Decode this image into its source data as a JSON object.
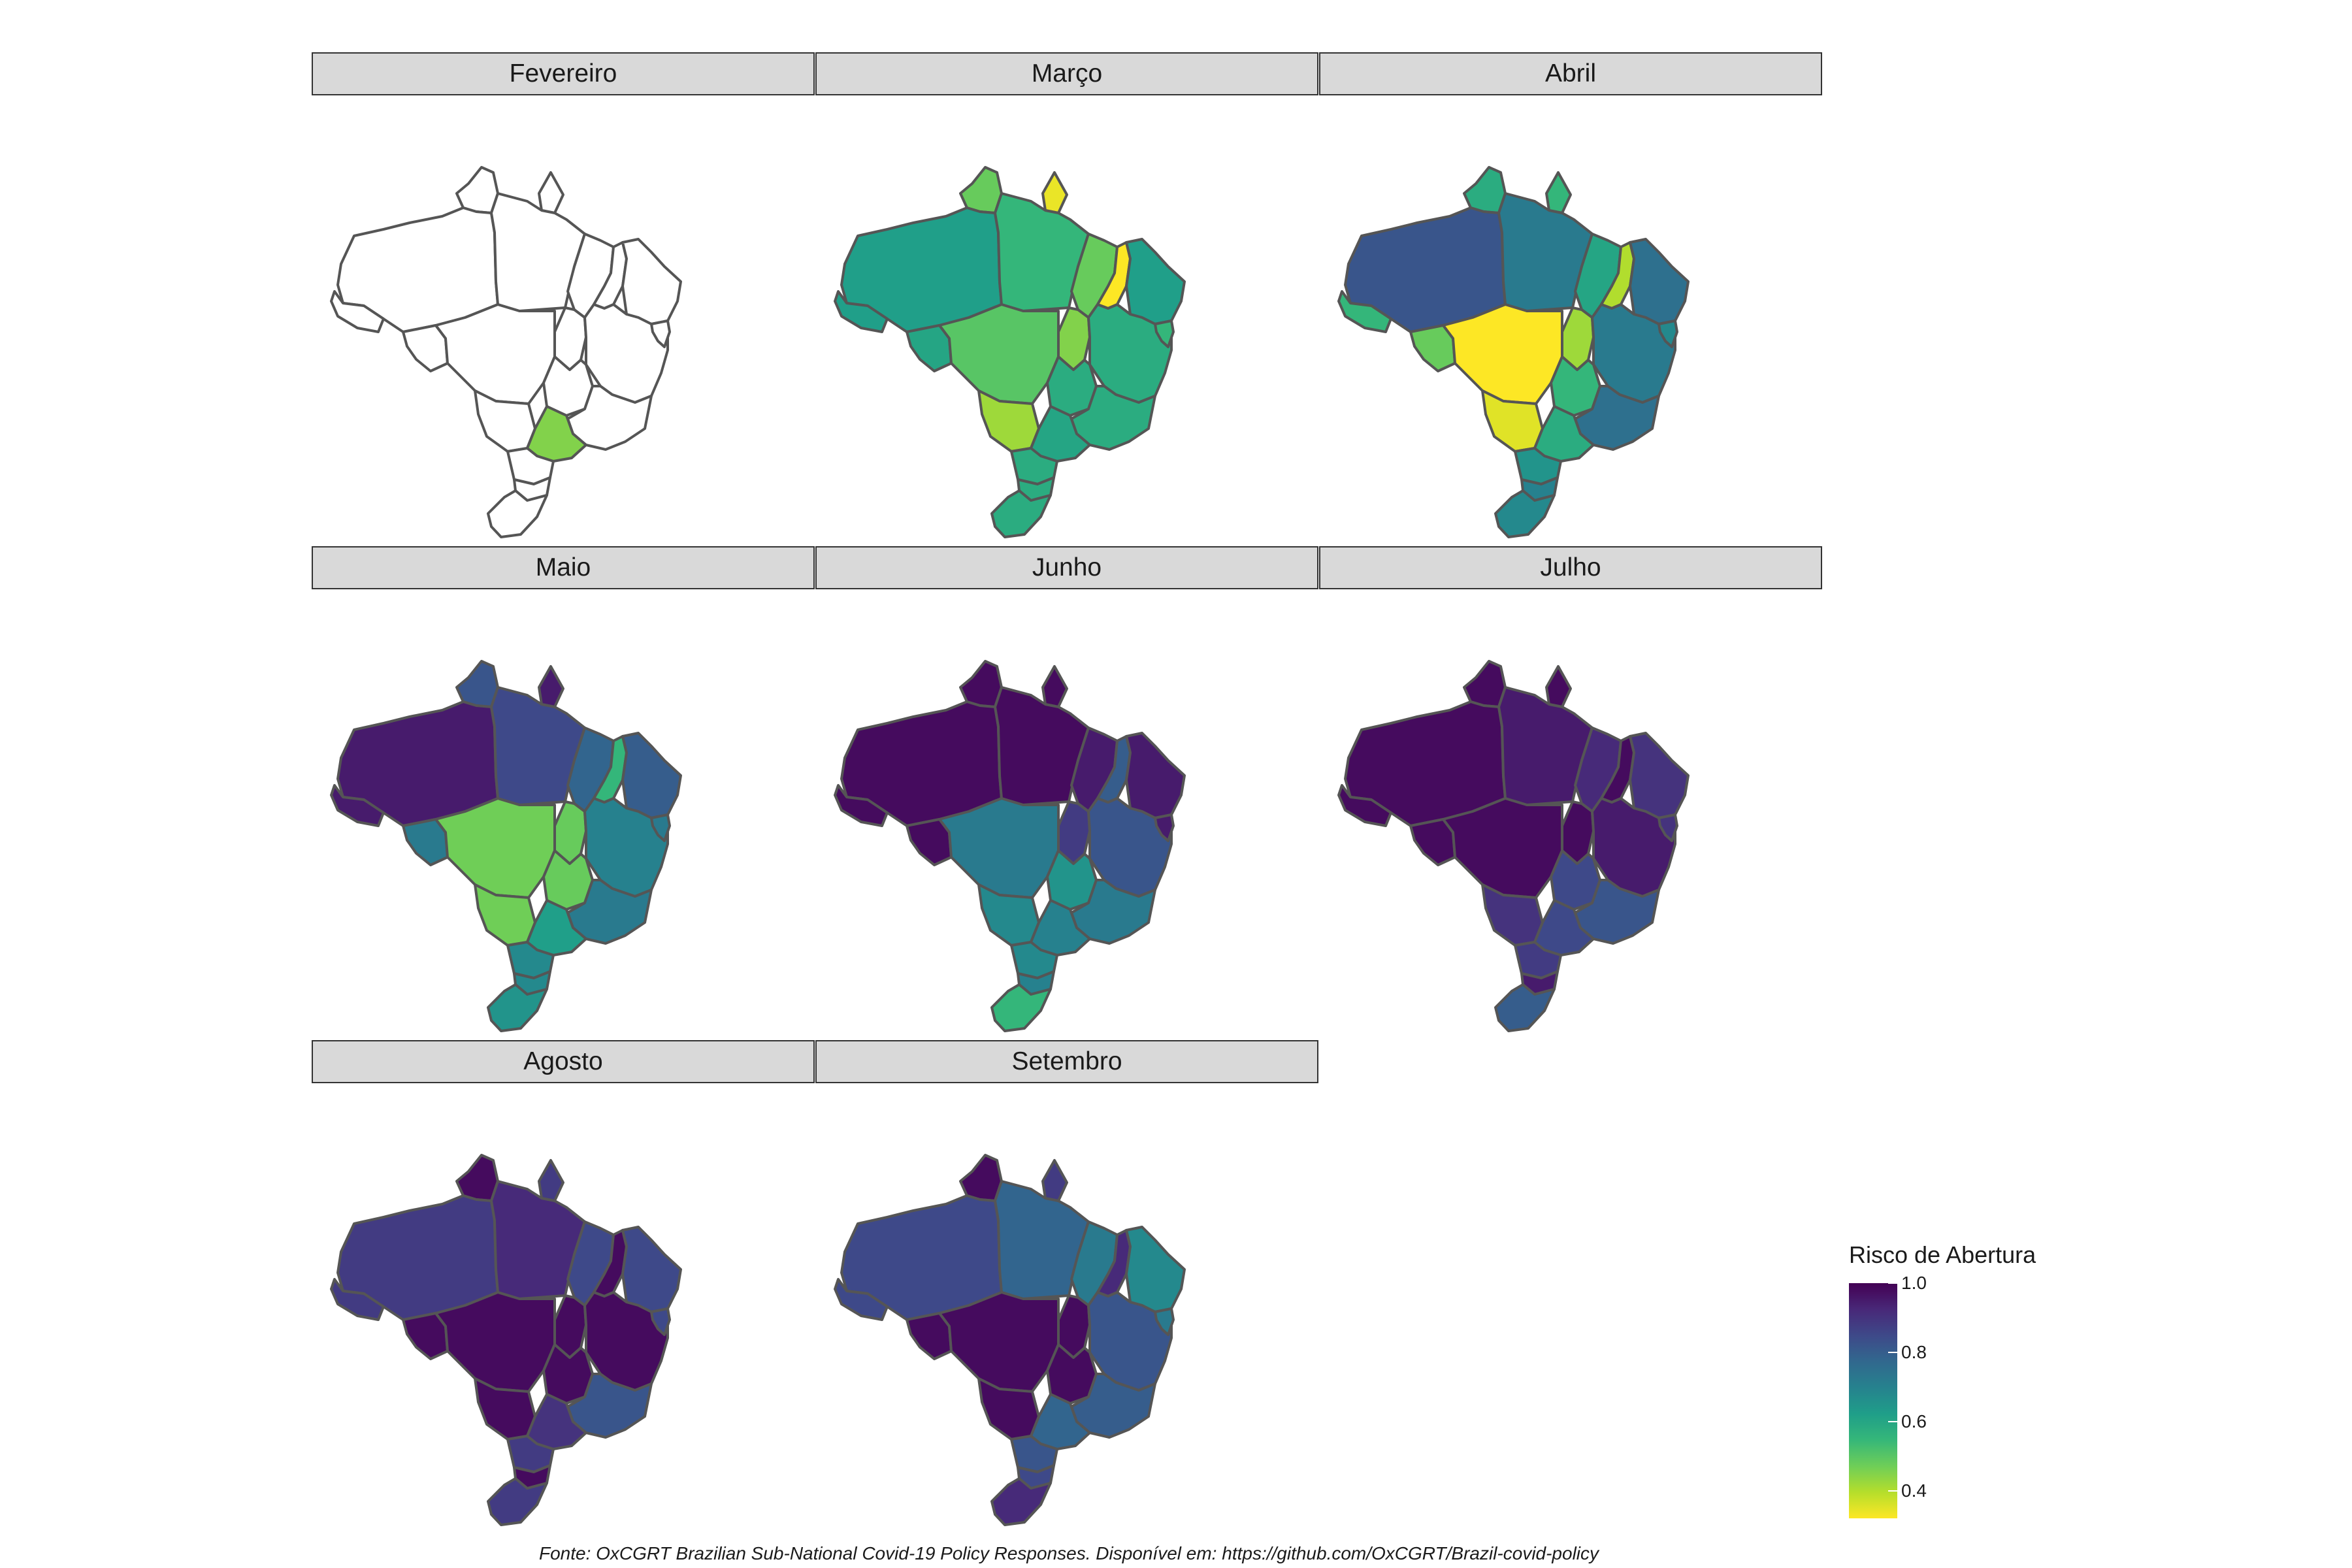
{
  "months": [
    {
      "name": "Fevereiro",
      "states": {
        "AC": null,
        "AM": null,
        "RR": null,
        "PA": null,
        "AP": null,
        "MA": null,
        "PI": null,
        "TO": null,
        "RO": null,
        "MT": null,
        "GO": null,
        "BA": null,
        "MS": null,
        "NE": null,
        "MG": null,
        "SP": 0.45,
        "PR": null,
        "SC": null,
        "RS": null,
        "SE": null
      }
    },
    {
      "name": "Março",
      "states": {
        "AC": 0.62,
        "AM": 0.62,
        "RR": 0.48,
        "PA": 0.55,
        "AP": 0.34,
        "MA": 0.48,
        "PI": 0.32,
        "TO": 0.45,
        "RO": 0.6,
        "MT": 0.5,
        "GO": 0.58,
        "BA": 0.58,
        "MS": 0.42,
        "NE": 0.62,
        "MG": 0.58,
        "SP": 0.6,
        "PR": 0.58,
        "SC": 0.58,
        "RS": 0.58,
        "SE": 0.55
      }
    },
    {
      "name": "Abril",
      "states": {
        "AC": 0.55,
        "AM": 0.82,
        "RR": 0.58,
        "PA": 0.72,
        "AP": 0.55,
        "MA": 0.6,
        "PI": 0.4,
        "TO": 0.42,
        "RO": 0.48,
        "MT": 0.32,
        "GO": 0.55,
        "BA": 0.72,
        "MS": 0.35,
        "NE": 0.75,
        "MG": 0.75,
        "SP": 0.58,
        "PR": 0.65,
        "SC": 0.7,
        "RS": 0.68,
        "SE": 0.68
      }
    },
    {
      "name": "Maio",
      "states": {
        "AC": 0.95,
        "AM": 0.95,
        "RR": 0.82,
        "PA": 0.85,
        "AP": 0.95,
        "MA": 0.78,
        "PI": 0.55,
        "TO": 0.48,
        "RO": 0.72,
        "MT": 0.47,
        "GO": 0.48,
        "BA": 0.7,
        "MS": 0.47,
        "NE": 0.8,
        "MG": 0.72,
        "SP": 0.62,
        "PR": 0.68,
        "SC": 0.68,
        "RS": 0.65,
        "SE": 0.72
      }
    },
    {
      "name": "Junho",
      "states": {
        "AC": 0.98,
        "AM": 0.98,
        "RR": 0.98,
        "PA": 0.98,
        "AP": 0.98,
        "MA": 0.95,
        "PI": 0.8,
        "TO": 0.88,
        "RO": 0.98,
        "MT": 0.72,
        "GO": 0.65,
        "BA": 0.82,
        "MS": 0.68,
        "NE": 0.95,
        "MG": 0.72,
        "SP": 0.7,
        "PR": 0.68,
        "SC": 0.7,
        "RS": 0.55,
        "SE": 0.95
      }
    },
    {
      "name": "Julho",
      "states": {
        "AC": 0.98,
        "AM": 0.98,
        "RR": 0.98,
        "PA": 0.95,
        "AP": 0.98,
        "MA": 0.92,
        "PI": 0.98,
        "TO": 0.98,
        "RO": 0.98,
        "MT": 0.98,
        "GO": 0.85,
        "BA": 0.95,
        "MS": 0.9,
        "NE": 0.9,
        "MG": 0.82,
        "SP": 0.85,
        "PR": 0.88,
        "SC": 0.95,
        "RS": 0.8,
        "SE": 0.9
      }
    },
    {
      "name": "Agosto",
      "states": {
        "AC": 0.88,
        "AM": 0.88,
        "RR": 0.98,
        "PA": 0.92,
        "AP": 0.88,
        "MA": 0.85,
        "PI": 0.98,
        "TO": 0.98,
        "RO": 0.98,
        "MT": 0.98,
        "GO": 0.98,
        "BA": 0.98,
        "MS": 0.98,
        "NE": 0.85,
        "MG": 0.82,
        "SP": 0.9,
        "PR": 0.88,
        "SC": 0.98,
        "RS": 0.88,
        "SE": 0.85
      }
    },
    {
      "name": "Setembro",
      "states": {
        "AC": 0.85,
        "AM": 0.85,
        "RR": 0.98,
        "PA": 0.78,
        "AP": 0.88,
        "MA": 0.72,
        "PI": 0.92,
        "TO": 0.98,
        "RO": 0.98,
        "MT": 0.98,
        "GO": 0.98,
        "BA": 0.82,
        "MS": 0.98,
        "NE": 0.68,
        "MG": 0.8,
        "SP": 0.78,
        "PR": 0.82,
        "SC": 0.85,
        "RS": 0.92,
        "SE": 0.72
      }
    }
  ],
  "legend": {
    "title": "Risco de Abertura",
    "ticks": [
      "1.0",
      "0.8",
      "0.6",
      "0.4"
    ],
    "tick_values": [
      1.0,
      0.8,
      0.6,
      0.4
    ],
    "min": 0.32,
    "max": 1.0,
    "palette": [
      "#fde725",
      "#b5de2b",
      "#6ece58",
      "#35b779",
      "#1f9e89",
      "#26828e",
      "#31688e",
      "#3e4989",
      "#482878",
      "#440154"
    ]
  },
  "caption": "Fonte: OxCGRT Brazilian Sub-National Covid-19 Policy Responses. Disponível em: https://github.com/OxCGRT/Brazil-covid-policy",
  "colors": {
    "state_border": "#555555",
    "empty_fill": "#ffffff",
    "strip_bg": "#d9d9d9"
  }
}
